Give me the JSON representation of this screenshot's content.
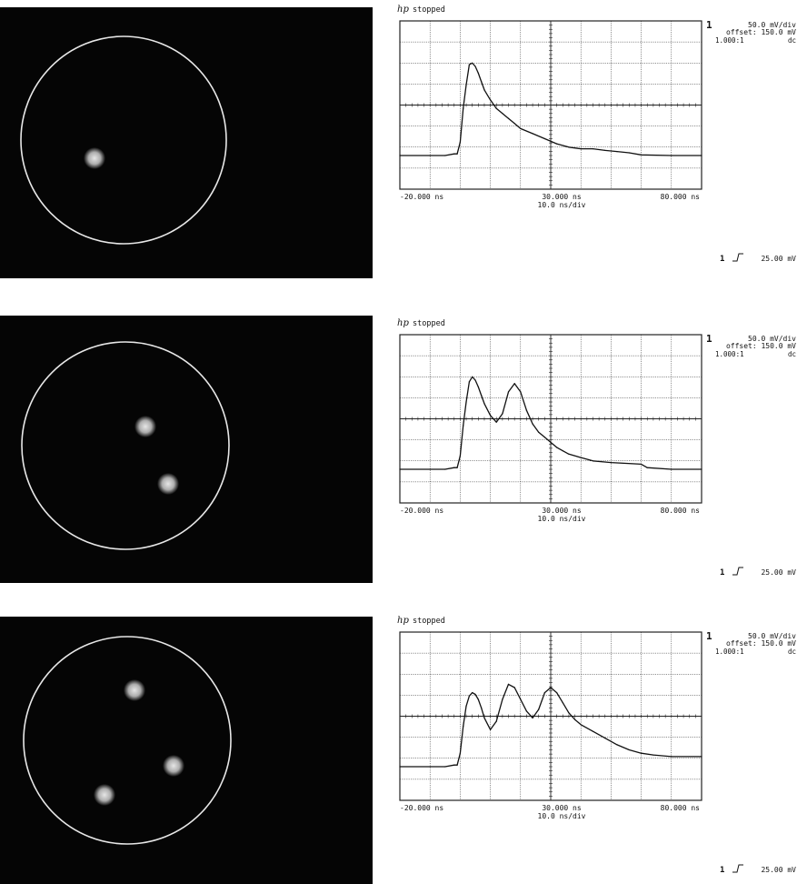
{
  "scope_common": {
    "status": "stopped",
    "channel_marker": "1",
    "volts_per_div": "50.0 mV/div",
    "offset": "offset: 150.0 mV",
    "probe": "1.000:1",
    "coupling": "dc",
    "x_left_label": "-20.000  ns",
    "x_center_label": "30.000  ns",
    "x_right_label": "80.000  ns",
    "time_per_div": "10.0 ns/div",
    "trigger_channel": "1",
    "trigger_level": "25.00 mV"
  },
  "colors": {
    "camera_background": "#050505",
    "circle": "#e8e8e8",
    "spot": "#e6e6e6",
    "trace": "#111111",
    "grid": "#222222"
  },
  "panels": [
    {
      "spots": 1,
      "chart_data": {
        "type": "line",
        "xlabel": "10.0 ns/div",
        "xlim": [
          -20,
          80
        ],
        "ylim": [
          -100,
          400
        ],
        "x": [
          -20,
          -5,
          -2,
          -1,
          0,
          1,
          2,
          3,
          4,
          5,
          6,
          7,
          8,
          10,
          12,
          14,
          16,
          18,
          20,
          24,
          28,
          32,
          36,
          40,
          44,
          48,
          52,
          56,
          60,
          70,
          80
        ],
        "values": [
          0,
          0,
          5,
          5,
          40,
          140,
          210,
          270,
          275,
          265,
          245,
          220,
          195,
          165,
          140,
          125,
          110,
          95,
          80,
          65,
          50,
          35,
          25,
          20,
          20,
          15,
          12,
          8,
          2,
          0,
          0
        ]
      }
    },
    {
      "spots": 2,
      "chart_data": {
        "type": "line",
        "xlabel": "10.0 ns/div",
        "xlim": [
          -20,
          80
        ],
        "ylim": [
          -100,
          400
        ],
        "x": [
          -20,
          -5,
          -2,
          -1,
          0,
          1,
          2,
          3,
          4,
          5,
          6,
          7,
          8,
          10,
          12,
          14,
          16,
          18,
          20,
          22,
          24,
          26,
          28,
          30,
          32,
          34,
          36,
          40,
          44,
          50,
          60,
          62,
          70,
          80
        ],
        "values": [
          0,
          0,
          5,
          5,
          40,
          130,
          200,
          260,
          275,
          265,
          245,
          220,
          195,
          160,
          140,
          165,
          230,
          255,
          230,
          175,
          135,
          110,
          95,
          80,
          65,
          55,
          45,
          35,
          25,
          20,
          15,
          5,
          0,
          0
        ]
      }
    },
    {
      "spots": 3,
      "chart_data": {
        "type": "line",
        "xlabel": "10.0 ns/div",
        "xlim": [
          -20,
          80
        ],
        "ylim": [
          -100,
          400
        ],
        "x": [
          -20,
          -5,
          -2,
          -1,
          0,
          1,
          2,
          3,
          4,
          5,
          6,
          7,
          8,
          10,
          12,
          14,
          16,
          18,
          20,
          22,
          24,
          26,
          28,
          30,
          32,
          34,
          36,
          38,
          40,
          44,
          48,
          52,
          56,
          60,
          64,
          70,
          80
        ],
        "values": [
          0,
          0,
          5,
          5,
          40,
          120,
          180,
          210,
          220,
          215,
          200,
          175,
          145,
          110,
          135,
          200,
          245,
          235,
          200,
          165,
          145,
          170,
          220,
          235,
          220,
          190,
          160,
          140,
          125,
          105,
          85,
          65,
          50,
          40,
          35,
          30,
          30
        ]
      }
    }
  ]
}
